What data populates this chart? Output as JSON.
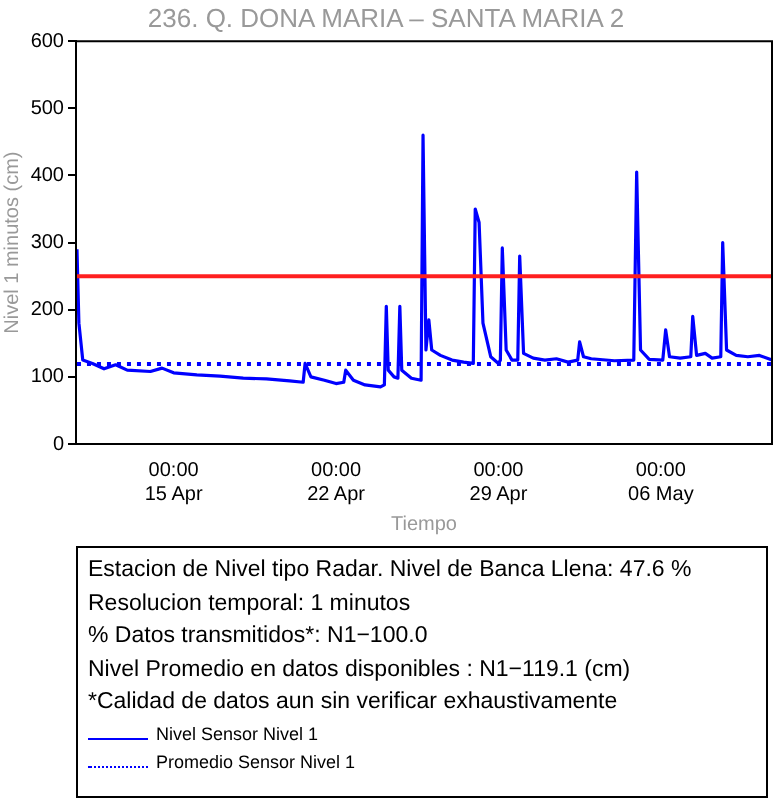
{
  "chart_data": {
    "type": "line",
    "title": "236. Q. DONA MARIA – SANTA MARIA 2",
    "xlabel": "Tiempo",
    "ylabel": "Nivel 1 minutos (cm)",
    "xlim": [
      "--04-10T19:00",
      "--05-10T19:00"
    ],
    "xticks": [
      {
        "value": "--04-15T00:00",
        "label": "00:00\n15 Apr"
      },
      {
        "value": "--04-22T00:00",
        "label": "00:00\n22 Apr"
      },
      {
        "value": "--04-29T00:00",
        "label": "00:00\n29 Apr"
      },
      {
        "value": "--05-06T00:00",
        "label": "00:00\n06 May"
      }
    ],
    "ylim": [
      0,
      600
    ],
    "yticks": [
      0,
      100,
      200,
      300,
      400,
      500,
      600
    ],
    "grid": false,
    "marker": "none",
    "legend": "bottom",
    "ref_lines": [
      {
        "axis": "y",
        "value": 250,
        "color": "#ff2020"
      }
    ],
    "annotations": [
      "Estacion de Nivel tipo Radar. Nivel de Banca Llena: 47.6 %",
      "Resolucion temporal: 1 minutos",
      "% Datos transmitidos*: N1−100.0",
      "Nivel Promedio en datos disponibles : N1−119.1 (cm)",
      "*Calidad de datos aun sin verificar exhaustivamente"
    ],
    "series": [
      {
        "name": "Nivel Sensor Nivel 1",
        "color": "#0000ff",
        "line_style": "solid",
        "x": [
          "--04-10T20:00",
          "--04-10T22:00",
          "--04-11T02:00",
          "--04-11T12:00",
          "--04-12T00:00",
          "--04-12T12:00",
          "--04-13T00:00",
          "--04-14T00:00",
          "--04-14T12:00",
          "--04-15T00:00",
          "--04-16T00:00",
          "--04-17T00:00",
          "--04-18T00:00",
          "--04-19T00:00",
          "--04-20T00:00",
          "--04-20T14:00",
          "--04-20T16:00",
          "--04-20T22:00",
          "--04-21T12:00",
          "--04-22T00:00",
          "--04-22T08:00",
          "--04-22T10:00",
          "--04-22T18:00",
          "--04-23T06:00",
          "--04-23T22:00",
          "--04-24T02:00",
          "--04-24T04:00",
          "--04-24T06:00",
          "--04-24T12:00",
          "--04-24T16:00",
          "--04-24T18:00",
          "--04-24T20:00",
          "--04-25T06:00",
          "--04-25T16:00",
          "--04-25T18:00",
          "--04-25T21:00",
          "--04-26T00:00",
          "--04-26T03:00",
          "--04-26T12:00",
          "--04-27T00:00",
          "--04-27T12:00",
          "--04-27T22:00",
          "--04-28T00:00",
          "--04-28T04:00",
          "--04-28T08:00",
          "--04-28T16:00",
          "--04-29T00:00",
          "--04-29T02:00",
          "--04-29T04:00",
          "--04-29T08:00",
          "--04-29T14:00",
          "--04-29T20:00",
          "--04-29T22:00",
          "--04-30T02:00",
          "--04-30T12:00",
          "--05-01T00:00",
          "--05-01T12:00",
          "--05-02T00:00",
          "--05-02T10:00",
          "--05-02T12:00",
          "--05-02T16:00",
          "--05-03T00:00",
          "--05-04T00:00",
          "--05-04T20:00",
          "--05-04T23:00",
          "--05-05T03:00",
          "--05-05T12:00",
          "--05-06T02:00",
          "--05-06T05:00",
          "--05-06T09:00",
          "--05-06T20:00",
          "--05-07T07:00",
          "--05-07T09:00",
          "--05-07T13:00",
          "--05-07T22:00",
          "--05-08T05:00",
          "--05-08T14:00",
          "--05-08T16:00",
          "--05-08T20:00",
          "--05-09T06:00",
          "--05-09T18:00",
          "--05-10T06:00",
          "--05-10T19:00"
        ],
        "values": [
          290,
          180,
          125,
          120,
          112,
          118,
          110,
          108,
          113,
          106,
          103,
          101,
          98,
          97,
          94,
          92,
          120,
          100,
          95,
          90,
          92,
          110,
          95,
          88,
          85,
          88,
          205,
          110,
          100,
          98,
          205,
          110,
          98,
          95,
          460,
          140,
          185,
          140,
          132,
          125,
          122,
          120,
          350,
          330,
          180,
          130,
          120,
          125,
          292,
          140,
          125,
          125,
          280,
          135,
          128,
          125,
          127,
          122,
          125,
          152,
          130,
          127,
          124,
          125,
          405,
          140,
          126,
          125,
          170,
          130,
          128,
          130,
          190,
          132,
          135,
          128,
          130,
          300,
          140,
          132,
          130,
          132,
          125
        ]
      },
      {
        "name": "Promedio Sensor Nivel 1",
        "color": "#0000ff",
        "line_style": "dotted",
        "x": [
          "--04-10T20:00",
          "--05-10T19:00"
        ],
        "values": [
          119.1,
          119.1
        ]
      }
    ]
  }
}
